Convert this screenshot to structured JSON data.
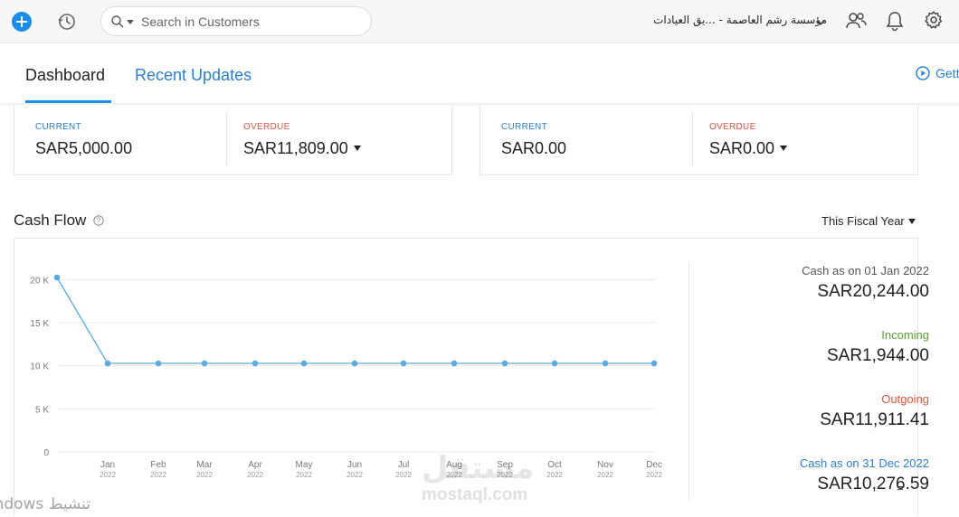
{
  "topbar": {
    "search_placeholder": "Search in Customers",
    "org_name": "مؤسسة رشم العاصمة - ...يق العيادات"
  },
  "tabs": [
    {
      "label": "Dashboard",
      "active": true
    },
    {
      "label": "Recent Updates",
      "active": false
    }
  ],
  "get_started_label": "Gett",
  "receivables": {
    "current_label": "CURRENT",
    "current_value": "SAR5,000.00",
    "overdue_label": "OVERDUE",
    "overdue_value": "SAR11,809.00"
  },
  "payables": {
    "current_label": "CURRENT",
    "current_value": "SAR0.00",
    "overdue_label": "OVERDUE",
    "overdue_value": "SAR0.00"
  },
  "cash_flow": {
    "title": "Cash Flow",
    "period": "This Fiscal Year",
    "summary": {
      "opening_label": "Cash as on 01 Jan 2022",
      "opening_value": "SAR20,244.00",
      "incoming_label": "Incoming",
      "incoming_value": "SAR1,944.00",
      "incoming_sign": "+",
      "outgoing_label": "Outgoing",
      "outgoing_value": "SAR11,911.41",
      "outgoing_sign": "-",
      "closing_label": "Cash as on 31 Dec 2022",
      "closing_value": "SAR10,276.59",
      "closing_sign": "="
    }
  },
  "colors": {
    "accent": "#1a8cec",
    "link": "#2a7fd4",
    "overdue": "#e0553e",
    "incoming": "#5a9a3a",
    "outgoing": "#e0553e",
    "line": "#5aaae0"
  },
  "watermark": {
    "logo": "مستقل",
    "site": "mostaql.com"
  },
  "activation_text": "تنشيط Windows",
  "chart_data": {
    "type": "line",
    "categories": [
      "",
      "Jan",
      "Feb",
      "Mar",
      "Apr",
      "May",
      "Jun",
      "Jul",
      "Aug",
      "Sep",
      "Oct",
      "Nov",
      "Dec"
    ],
    "sub_categories": [
      "",
      "2022",
      "2022",
      "2022",
      "2022",
      "2022",
      "2022",
      "2022",
      "2022",
      "2022",
      "2022",
      "2022",
      "2022"
    ],
    "series": [
      {
        "values": [
          20244,
          10277,
          10277,
          10277,
          10277,
          10277,
          10277,
          10277,
          10277,
          10277,
          10277,
          10277,
          10277
        ]
      }
    ],
    "yticks": [
      0,
      5000,
      10000,
      15000,
      20000
    ],
    "ytick_labels": [
      "0",
      "5 K",
      "10 K",
      "15 K",
      "20 K"
    ],
    "ylim": [
      0,
      20244
    ],
    "grid": true
  }
}
